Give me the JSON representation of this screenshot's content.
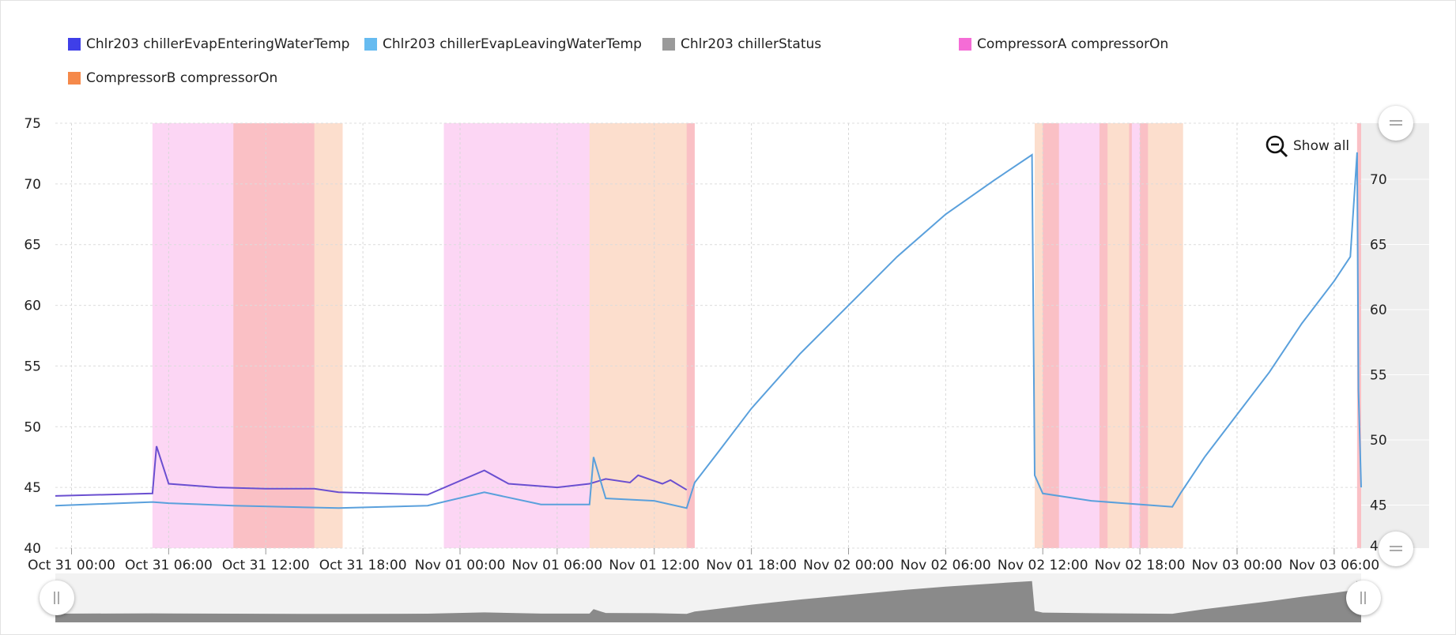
{
  "legend": {
    "items": [
      {
        "label": "Chlr203 chillerEvapEnteringWaterTemp",
        "color": "#3f3fe8"
      },
      {
        "label": "Chlr203 chillerEvapLeavingWaterTemp",
        "color": "#66bbf0"
      },
      {
        "label": "Chlr203 chillerStatus",
        "color": "#9a9a9a"
      },
      {
        "label": "CompressorA compressorOn",
        "color": "#f56cd6"
      },
      {
        "label": "CompressorB compressorOn",
        "color": "#f5894a"
      }
    ]
  },
  "controls": {
    "show_all_label": "Show all",
    "zoom_icon": "zoom-out-icon",
    "scrollbar_grip_icon": "grip-icon",
    "axis_handle_icon": "drag-handle-icon"
  },
  "chart_data": {
    "type": "line",
    "x_type": "datetime",
    "xlim": [
      "2020-10-30T23:00",
      "2020-11-03T07:40"
    ],
    "x_tick_labels": [
      "Oct 31 00:00",
      "Oct 31 06:00",
      "Oct 31 12:00",
      "Oct 31 18:00",
      "Nov 01 00:00",
      "Nov 01 06:00",
      "Nov 01 12:00",
      "Nov 01 18:00",
      "Nov 02 00:00",
      "Nov 02 06:00",
      "Nov 02 12:00",
      "Nov 02 18:00",
      "Nov 03 00:00",
      "Nov 03 06:00"
    ],
    "y_left": {
      "ylim": [
        40,
        75
      ],
      "ticks": [
        40,
        45,
        50,
        55,
        60,
        65,
        70,
        75
      ]
    },
    "y_right": {
      "ylim": [
        41.7,
        74.3
      ],
      "ticks": [
        45,
        50,
        55,
        60,
        65,
        70
      ],
      "partial_tick": "4("
    },
    "grid": true,
    "legend_position": "top",
    "series": [
      {
        "name": "Chlr203 chillerEvapEnteringWaterTemp",
        "color": "#6a4fd0",
        "axis": "left",
        "points": [
          [
            "2020-10-30T23:00",
            44.3
          ],
          [
            "2020-10-31T05:00",
            44.5
          ],
          [
            "2020-10-31T05:15",
            48.4
          ],
          [
            "2020-10-31T06:00",
            45.3
          ],
          [
            "2020-10-31T09:00",
            45.0
          ],
          [
            "2020-10-31T12:00",
            44.9
          ],
          [
            "2020-10-31T15:00",
            44.9
          ],
          [
            "2020-10-31T16:30",
            44.6
          ],
          [
            "2020-10-31T22:00",
            44.4
          ],
          [
            "2020-11-01T01:30",
            46.4
          ],
          [
            "2020-11-01T03:00",
            45.3
          ],
          [
            "2020-11-01T06:00",
            45.0
          ],
          [
            "2020-11-01T08:00",
            45.3
          ],
          [
            "2020-11-01T09:00",
            45.7
          ],
          [
            "2020-11-01T10:30",
            45.4
          ],
          [
            "2020-11-01T11:00",
            46.0
          ],
          [
            "2020-11-01T12:30",
            45.3
          ],
          [
            "2020-11-01T13:00",
            45.6
          ],
          [
            "2020-11-01T14:00",
            44.8
          ]
        ]
      },
      {
        "name": "Chlr203 chillerEvapLeavingWaterTemp",
        "color": "#5aa0dc",
        "axis": "left",
        "points": [
          [
            "2020-10-30T23:00",
            43.5
          ],
          [
            "2020-10-31T05:00",
            43.8
          ],
          [
            "2020-10-31T06:00",
            43.7
          ],
          [
            "2020-10-31T10:00",
            43.5
          ],
          [
            "2020-10-31T16:30",
            43.3
          ],
          [
            "2020-10-31T22:00",
            43.5
          ],
          [
            "2020-11-01T01:30",
            44.6
          ],
          [
            "2020-11-01T05:00",
            43.6
          ],
          [
            "2020-11-01T08:00",
            43.6
          ],
          [
            "2020-11-01T08:15",
            47.5
          ],
          [
            "2020-11-01T09:00",
            44.1
          ],
          [
            "2020-11-01T12:00",
            43.9
          ],
          [
            "2020-11-01T14:00",
            43.3
          ],
          [
            "2020-11-01T14:30",
            45.4
          ],
          [
            "2020-11-01T16:00",
            48.0
          ],
          [
            "2020-11-01T18:00",
            51.5
          ],
          [
            "2020-11-01T21:00",
            56.0
          ],
          [
            "2020-11-02T00:00",
            60.0
          ],
          [
            "2020-11-02T03:00",
            64.0
          ],
          [
            "2020-11-02T06:00",
            67.5
          ],
          [
            "2020-11-02T09:00",
            70.3
          ],
          [
            "2020-11-02T11:20",
            72.4
          ],
          [
            "2020-11-02T11:30",
            46.0
          ],
          [
            "2020-11-02T12:00",
            44.5
          ],
          [
            "2020-11-02T15:00",
            43.9
          ],
          [
            "2020-11-02T20:00",
            43.4
          ],
          [
            "2020-11-02T20:30",
            44.5
          ],
          [
            "2020-11-02T22:00",
            47.5
          ],
          [
            "2020-11-03T00:00",
            51.0
          ],
          [
            "2020-11-03T02:00",
            54.5
          ],
          [
            "2020-11-03T04:00",
            58.5
          ],
          [
            "2020-11-03T06:00",
            62.0
          ],
          [
            "2020-11-03T07:00",
            64.0
          ],
          [
            "2020-11-03T07:25",
            72.6
          ],
          [
            "2020-11-03T07:30",
            53.0
          ],
          [
            "2020-11-03T07:40",
            45.0
          ]
        ]
      },
      {
        "name": "Chlr203 chillerStatus",
        "color": "#9a9a9a",
        "axis": "right",
        "values": []
      }
    ],
    "on_bands": [
      {
        "name": "CompressorA compressorOn",
        "color": "#f56cd6",
        "intervals": [
          [
            "2020-10-31T05:00",
            "2020-10-31T15:00"
          ],
          [
            "2020-10-31T23:00",
            "2020-11-01T08:00"
          ],
          [
            "2020-11-01T14:00",
            "2020-11-01T14:30"
          ],
          [
            "2020-11-02T12:00",
            "2020-11-02T16:00"
          ],
          [
            "2020-11-02T17:20",
            "2020-11-02T18:30"
          ],
          [
            "2020-11-03T07:25",
            "2020-11-03T07:40"
          ]
        ]
      },
      {
        "name": "CompressorB compressorOn",
        "color": "#f5894a",
        "intervals": [
          [
            "2020-10-31T10:00",
            "2020-10-31T16:45"
          ],
          [
            "2020-11-01T08:00",
            "2020-11-01T14:30"
          ],
          [
            "2020-11-02T11:30",
            "2020-11-02T13:00"
          ],
          [
            "2020-11-02T15:30",
            "2020-11-02T17:30"
          ],
          [
            "2020-11-02T18:00",
            "2020-11-02T20:40"
          ],
          [
            "2020-11-03T07:25",
            "2020-11-03T07:40"
          ]
        ]
      }
    ]
  }
}
